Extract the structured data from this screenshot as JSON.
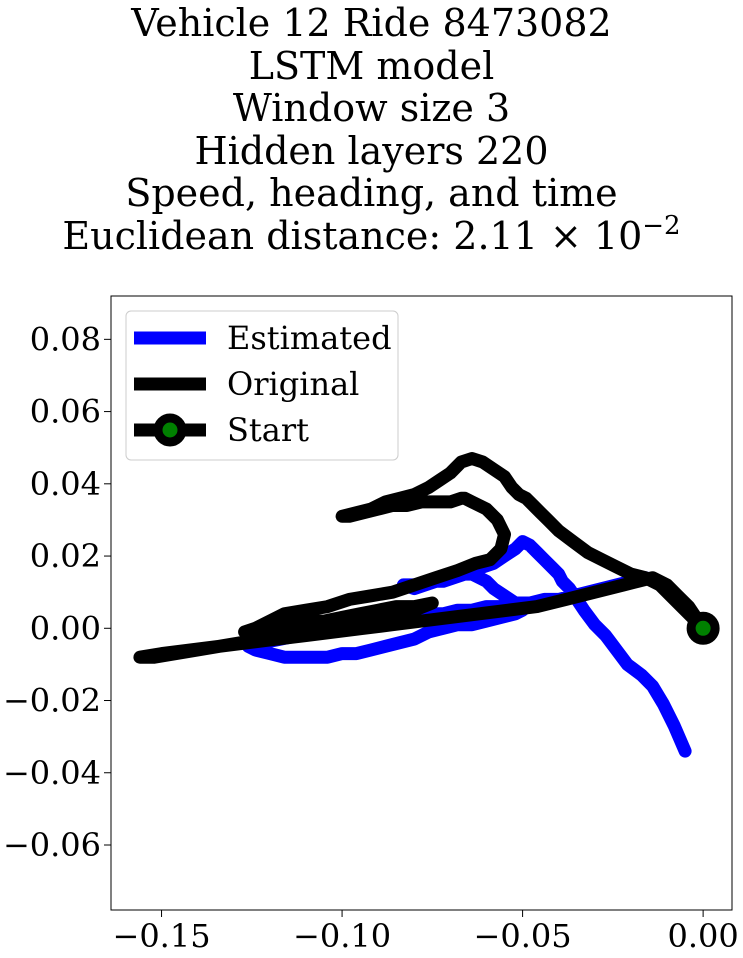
{
  "chart_data": {
    "type": "line",
    "title_lines": [
      "Vehicle 12 Ride 8473082",
      "LSTM model",
      "Window size 3",
      "Hidden layers 220",
      "Speed, heading, and time"
    ],
    "distance_label": "Euclidean distance: 2.11",
    "distance_times": "×",
    "distance_base": "10",
    "distance_exp": "−2",
    "xlabel": "",
    "ylabel": "",
    "xlim": [
      -0.164,
      0.008
    ],
    "ylim": [
      -0.078,
      0.092
    ],
    "xticks": [
      -0.15,
      -0.1,
      -0.05,
      0.0
    ],
    "xtick_labels": [
      "−0.15",
      "−0.10",
      "−0.05",
      "0.00"
    ],
    "yticks": [
      0.08,
      0.06,
      0.04,
      0.02,
      0.0,
      -0.02,
      -0.04,
      -0.06
    ],
    "ytick_labels": [
      "0.08",
      "0.06",
      "0.04",
      "0.02",
      "0.00",
      "−0.02",
      "−0.04",
      "−0.06"
    ],
    "grid": false,
    "legend_position": "top-left",
    "series": [
      {
        "name": "Estimated",
        "color": "#0000ff",
        "x": [
          -0.005,
          -0.008,
          -0.011,
          -0.014,
          -0.017,
          -0.021,
          -0.024,
          -0.027,
          -0.03,
          -0.033,
          -0.035,
          -0.037,
          -0.039,
          -0.04,
          -0.042,
          -0.044,
          -0.046,
          -0.048,
          -0.05,
          -0.052,
          -0.055,
          -0.058,
          -0.061,
          -0.064,
          -0.068,
          -0.071,
          -0.074,
          -0.077,
          -0.08,
          -0.083,
          -0.081,
          -0.078,
          -0.075,
          -0.072,
          -0.069,
          -0.066,
          -0.064,
          -0.062,
          -0.06,
          -0.058,
          -0.055,
          -0.052,
          -0.05,
          -0.052,
          -0.056,
          -0.06,
          -0.064,
          -0.068,
          -0.072,
          -0.076,
          -0.08,
          -0.084,
          -0.088,
          -0.092,
          -0.096,
          -0.1,
          -0.104,
          -0.108,
          -0.112,
          -0.116,
          -0.12,
          -0.124,
          -0.126,
          -0.122,
          -0.117,
          -0.112,
          -0.107,
          -0.102,
          -0.097,
          -0.092,
          -0.088,
          -0.084,
          -0.08,
          -0.076,
          -0.072,
          -0.068,
          -0.064,
          -0.06,
          -0.056,
          -0.052,
          -0.048,
          -0.044,
          -0.04,
          -0.036,
          -0.032,
          -0.028,
          -0.024,
          -0.02,
          -0.016,
          -0.013
        ],
        "y": [
          -0.034,
          -0.027,
          -0.021,
          -0.016,
          -0.013,
          -0.01,
          -0.006,
          -0.002,
          0.001,
          0.005,
          0.008,
          0.011,
          0.013,
          0.015,
          0.017,
          0.019,
          0.021,
          0.023,
          0.024,
          0.022,
          0.02,
          0.018,
          0.017,
          0.016,
          0.015,
          0.014,
          0.013,
          0.012,
          0.011,
          0.012,
          0.012,
          0.012,
          0.013,
          0.013,
          0.014,
          0.015,
          0.015,
          0.014,
          0.013,
          0.011,
          0.009,
          0.007,
          0.005,
          0.004,
          0.003,
          0.002,
          0.001,
          0.001,
          0.0,
          -0.001,
          -0.003,
          -0.004,
          -0.005,
          -0.006,
          -0.007,
          -0.007,
          -0.008,
          -0.008,
          -0.008,
          -0.008,
          -0.007,
          -0.006,
          -0.005,
          -0.004,
          -0.003,
          -0.002,
          -0.001,
          0.0,
          0.0,
          0.001,
          0.002,
          0.002,
          0.003,
          0.004,
          0.004,
          0.005,
          0.005,
          0.006,
          0.006,
          0.007,
          0.007,
          0.008,
          0.008,
          0.009,
          0.01,
          0.011,
          0.012,
          0.013,
          0.014,
          0.013
        ]
      },
      {
        "name": "Original",
        "color": "#000000",
        "x": [
          0.0,
          -0.003,
          -0.006,
          -0.009,
          -0.012,
          -0.016,
          -0.02,
          -0.024,
          -0.028,
          -0.032,
          -0.036,
          -0.04,
          -0.043,
          -0.045,
          -0.047,
          -0.049,
          -0.051,
          -0.053,
          -0.055,
          -0.058,
          -0.061,
          -0.064,
          -0.067,
          -0.07,
          -0.073,
          -0.076,
          -0.08,
          -0.084,
          -0.088,
          -0.092,
          -0.096,
          -0.1,
          -0.098,
          -0.094,
          -0.09,
          -0.086,
          -0.082,
          -0.078,
          -0.074,
          -0.07,
          -0.067,
          -0.066,
          -0.064,
          -0.06,
          -0.057,
          -0.055,
          -0.056,
          -0.059,
          -0.063,
          -0.068,
          -0.074,
          -0.08,
          -0.086,
          -0.092,
          -0.098,
          -0.104,
          -0.11,
          -0.116,
          -0.12,
          -0.124,
          -0.127,
          -0.124,
          -0.12,
          -0.115,
          -0.11,
          -0.105,
          -0.1,
          -0.095,
          -0.09,
          -0.085,
          -0.08,
          -0.075,
          -0.08,
          -0.086,
          -0.092,
          -0.098,
          -0.104,
          -0.11,
          -0.116,
          -0.122,
          -0.128,
          -0.134,
          -0.14,
          -0.146,
          -0.152,
          -0.156,
          -0.15,
          -0.142,
          -0.134,
          -0.126,
          -0.118,
          -0.11,
          -0.102,
          -0.094,
          -0.086,
          -0.078,
          -0.07,
          -0.062,
          -0.054,
          -0.046,
          -0.038,
          -0.03,
          -0.022,
          -0.014,
          -0.01,
          -0.007,
          -0.004,
          -0.002
        ],
        "y": [
          0.0,
          0.003,
          0.006,
          0.009,
          0.012,
          0.014,
          0.015,
          0.017,
          0.019,
          0.021,
          0.024,
          0.027,
          0.03,
          0.032,
          0.034,
          0.036,
          0.037,
          0.039,
          0.042,
          0.044,
          0.046,
          0.047,
          0.046,
          0.043,
          0.041,
          0.039,
          0.037,
          0.036,
          0.035,
          0.033,
          0.032,
          0.031,
          0.031,
          0.032,
          0.033,
          0.034,
          0.034,
          0.035,
          0.035,
          0.035,
          0.036,
          0.036,
          0.035,
          0.033,
          0.03,
          0.026,
          0.022,
          0.019,
          0.018,
          0.016,
          0.014,
          0.012,
          0.01,
          0.009,
          0.008,
          0.006,
          0.005,
          0.004,
          0.002,
          0.0,
          -0.001,
          -0.001,
          0.0,
          0.001,
          0.002,
          0.002,
          0.003,
          0.004,
          0.005,
          0.006,
          0.006,
          0.007,
          0.005,
          0.004,
          0.003,
          0.002,
          0.0,
          -0.001,
          -0.002,
          -0.003,
          -0.004,
          -0.005,
          -0.006,
          -0.007,
          -0.008,
          -0.008,
          -0.007,
          -0.006,
          -0.005,
          -0.004,
          -0.003,
          -0.002,
          -0.001,
          0.0,
          0.001,
          0.002,
          0.003,
          0.004,
          0.005,
          0.006,
          0.008,
          0.01,
          0.012,
          0.014,
          0.012,
          0.009,
          0.006,
          0.003
        ]
      },
      {
        "name": "Start",
        "color": "#000000",
        "marker_face_color": "#008000",
        "x": [
          0.0
        ],
        "y": [
          0.0
        ]
      }
    ]
  }
}
